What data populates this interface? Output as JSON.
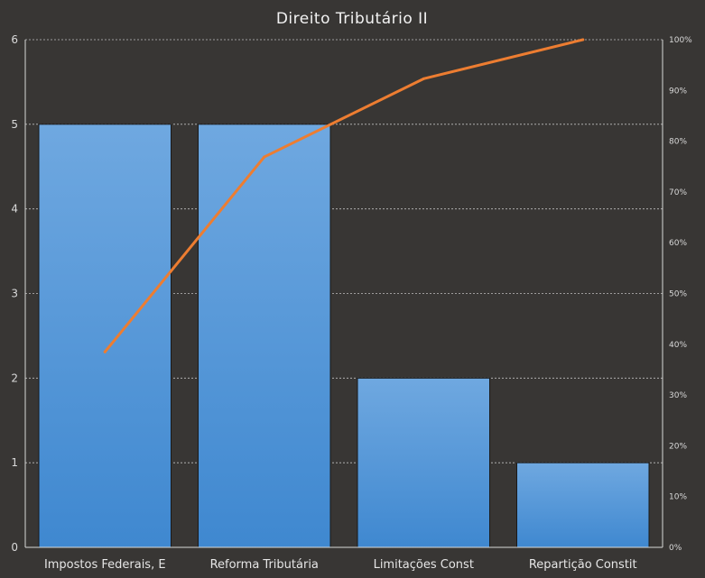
{
  "chart_data": {
    "type": "bar",
    "title": "Direito Tributário II",
    "categories": [
      "Impostos Federais, E",
      "Reforma Tributária",
      "Limitações Const",
      "Repartição Constit"
    ],
    "series": [
      {
        "values": [
          5,
          5,
          2,
          1
        ],
        "axis": "left"
      },
      {
        "type": "line",
        "values": [
          38.5,
          76.9,
          92.3,
          100
        ],
        "axis": "right",
        "unit": "%"
      }
    ],
    "ylim": [
      0,
      6
    ],
    "yticks": [
      0,
      1,
      2,
      3,
      4,
      5,
      6
    ],
    "y2lim": [
      0,
      100
    ],
    "y2ticks": [
      "0%",
      "10%",
      "20%",
      "30%",
      "40%",
      "50%",
      "60%",
      "70%",
      "80%",
      "90%",
      "100%"
    ],
    "grid": true,
    "legend": "none",
    "colors": {
      "background": "#383634",
      "bar_top": "#6fa8e0",
      "bar_bottom": "#3f88d0",
      "line": "#ed7d31"
    }
  }
}
